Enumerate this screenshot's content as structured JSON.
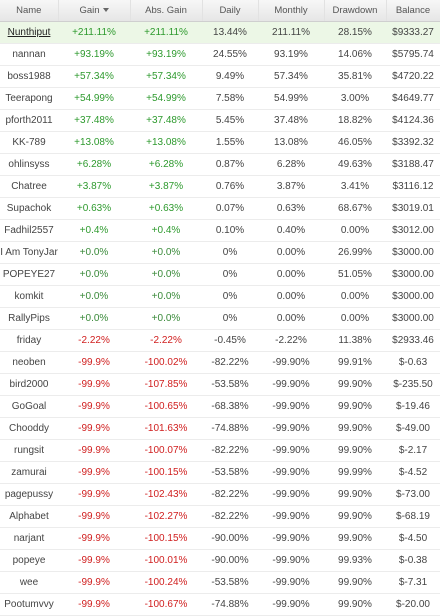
{
  "headers": {
    "name": "Name",
    "gain": "Gain",
    "abs_gain": "Abs. Gain",
    "daily": "Daily",
    "monthly": "Monthly",
    "drawdown": "Drawdown",
    "balance": "Balance"
  },
  "colors": {
    "positive": "#2e9a2e",
    "negative": "#d01e1e",
    "highlight_row": "#ecf7e6"
  },
  "rows": [
    {
      "name": "Nunthiput",
      "gain": "+211.11%",
      "abs_gain": "+211.11%",
      "daily": "13.44%",
      "monthly": "211.11%",
      "drawdown": "28.15%",
      "balance": "$9333.27"
    },
    {
      "name": "nannan",
      "gain": "+93.19%",
      "abs_gain": "+93.19%",
      "daily": "24.55%",
      "monthly": "93.19%",
      "drawdown": "14.06%",
      "balance": "$5795.74"
    },
    {
      "name": "boss1988",
      "gain": "+57.34%",
      "abs_gain": "+57.34%",
      "daily": "9.49%",
      "monthly": "57.34%",
      "drawdown": "35.81%",
      "balance": "$4720.22"
    },
    {
      "name": "Teerapong",
      "gain": "+54.99%",
      "abs_gain": "+54.99%",
      "daily": "7.58%",
      "monthly": "54.99%",
      "drawdown": "3.00%",
      "balance": "$4649.77"
    },
    {
      "name": "pforth2011",
      "gain": "+37.48%",
      "abs_gain": "+37.48%",
      "daily": "5.45%",
      "monthly": "37.48%",
      "drawdown": "18.82%",
      "balance": "$4124.36"
    },
    {
      "name": "KK-789",
      "gain": "+13.08%",
      "abs_gain": "+13.08%",
      "daily": "1.55%",
      "monthly": "13.08%",
      "drawdown": "46.05%",
      "balance": "$3392.32"
    },
    {
      "name": "ohlinsyss",
      "gain": "+6.28%",
      "abs_gain": "+6.28%",
      "daily": "0.87%",
      "monthly": "6.28%",
      "drawdown": "49.63%",
      "balance": "$3188.47"
    },
    {
      "name": "Chatree",
      "gain": "+3.87%",
      "abs_gain": "+3.87%",
      "daily": "0.76%",
      "monthly": "3.87%",
      "drawdown": "3.41%",
      "balance": "$3116.12"
    },
    {
      "name": "Supachok",
      "gain": "+0.63%",
      "abs_gain": "+0.63%",
      "daily": "0.07%",
      "monthly": "0.63%",
      "drawdown": "68.67%",
      "balance": "$3019.01"
    },
    {
      "name": "Fadhil2557",
      "gain": "+0.4%",
      "abs_gain": "+0.4%",
      "daily": "0.10%",
      "monthly": "0.40%",
      "drawdown": "0.00%",
      "balance": "$3012.00"
    },
    {
      "name": "I Am TonyJar",
      "gain": "+0.0%",
      "abs_gain": "+0.0%",
      "daily": "0%",
      "monthly": "0.00%",
      "drawdown": "26.99%",
      "balance": "$3000.00"
    },
    {
      "name": "POPEYE27",
      "gain": "+0.0%",
      "abs_gain": "+0.0%",
      "daily": "0%",
      "monthly": "0.00%",
      "drawdown": "51.05%",
      "balance": "$3000.00"
    },
    {
      "name": "komkit",
      "gain": "+0.0%",
      "abs_gain": "+0.0%",
      "daily": "0%",
      "monthly": "0.00%",
      "drawdown": "0.00%",
      "balance": "$3000.00"
    },
    {
      "name": "RallyPips",
      "gain": "+0.0%",
      "abs_gain": "+0.0%",
      "daily": "0%",
      "monthly": "0.00%",
      "drawdown": "0.00%",
      "balance": "$3000.00"
    },
    {
      "name": "friday",
      "gain": "-2.22%",
      "abs_gain": "-2.22%",
      "daily": "-0.45%",
      "monthly": "-2.22%",
      "drawdown": "11.38%",
      "balance": "$2933.46"
    },
    {
      "name": "neoben",
      "gain": "-99.9%",
      "abs_gain": "-100.02%",
      "daily": "-82.22%",
      "monthly": "-99.90%",
      "drawdown": "99.91%",
      "balance": "$-0.63"
    },
    {
      "name": "bird2000",
      "gain": "-99.9%",
      "abs_gain": "-107.85%",
      "daily": "-53.58%",
      "monthly": "-99.90%",
      "drawdown": "99.90%",
      "balance": "$-235.50"
    },
    {
      "name": "GoGoal",
      "gain": "-99.9%",
      "abs_gain": "-100.65%",
      "daily": "-68.38%",
      "monthly": "-99.90%",
      "drawdown": "99.90%",
      "balance": "$-19.46"
    },
    {
      "name": "Chooddy",
      "gain": "-99.9%",
      "abs_gain": "-101.63%",
      "daily": "-74.88%",
      "monthly": "-99.90%",
      "drawdown": "99.90%",
      "balance": "$-49.00"
    },
    {
      "name": "rungsit",
      "gain": "-99.9%",
      "abs_gain": "-100.07%",
      "daily": "-82.22%",
      "monthly": "-99.90%",
      "drawdown": "99.90%",
      "balance": "$-2.17"
    },
    {
      "name": "zamurai",
      "gain": "-99.9%",
      "abs_gain": "-100.15%",
      "daily": "-53.58%",
      "monthly": "-99.90%",
      "drawdown": "99.99%",
      "balance": "$-4.52"
    },
    {
      "name": "pagepussy",
      "gain": "-99.9%",
      "abs_gain": "-102.43%",
      "daily": "-82.22%",
      "monthly": "-99.90%",
      "drawdown": "99.90%",
      "balance": "$-73.00"
    },
    {
      "name": "Alphabet",
      "gain": "-99.9%",
      "abs_gain": "-102.27%",
      "daily": "-82.22%",
      "monthly": "-99.90%",
      "drawdown": "99.90%",
      "balance": "$-68.19"
    },
    {
      "name": "narjant",
      "gain": "-99.9%",
      "abs_gain": "-100.15%",
      "daily": "-90.00%",
      "monthly": "-99.90%",
      "drawdown": "99.90%",
      "balance": "$-4.50"
    },
    {
      "name": "popeye",
      "gain": "-99.9%",
      "abs_gain": "-100.01%",
      "daily": "-90.00%",
      "monthly": "-99.90%",
      "drawdown": "99.93%",
      "balance": "$-0.38"
    },
    {
      "name": "wee",
      "gain": "-99.9%",
      "abs_gain": "-100.24%",
      "daily": "-53.58%",
      "monthly": "-99.90%",
      "drawdown": "99.90%",
      "balance": "$-7.31"
    },
    {
      "name": "Pootumvvy",
      "gain": "-99.9%",
      "abs_gain": "-100.67%",
      "daily": "-74.88%",
      "monthly": "-99.90%",
      "drawdown": "99.90%",
      "balance": "$-20.00"
    }
  ]
}
